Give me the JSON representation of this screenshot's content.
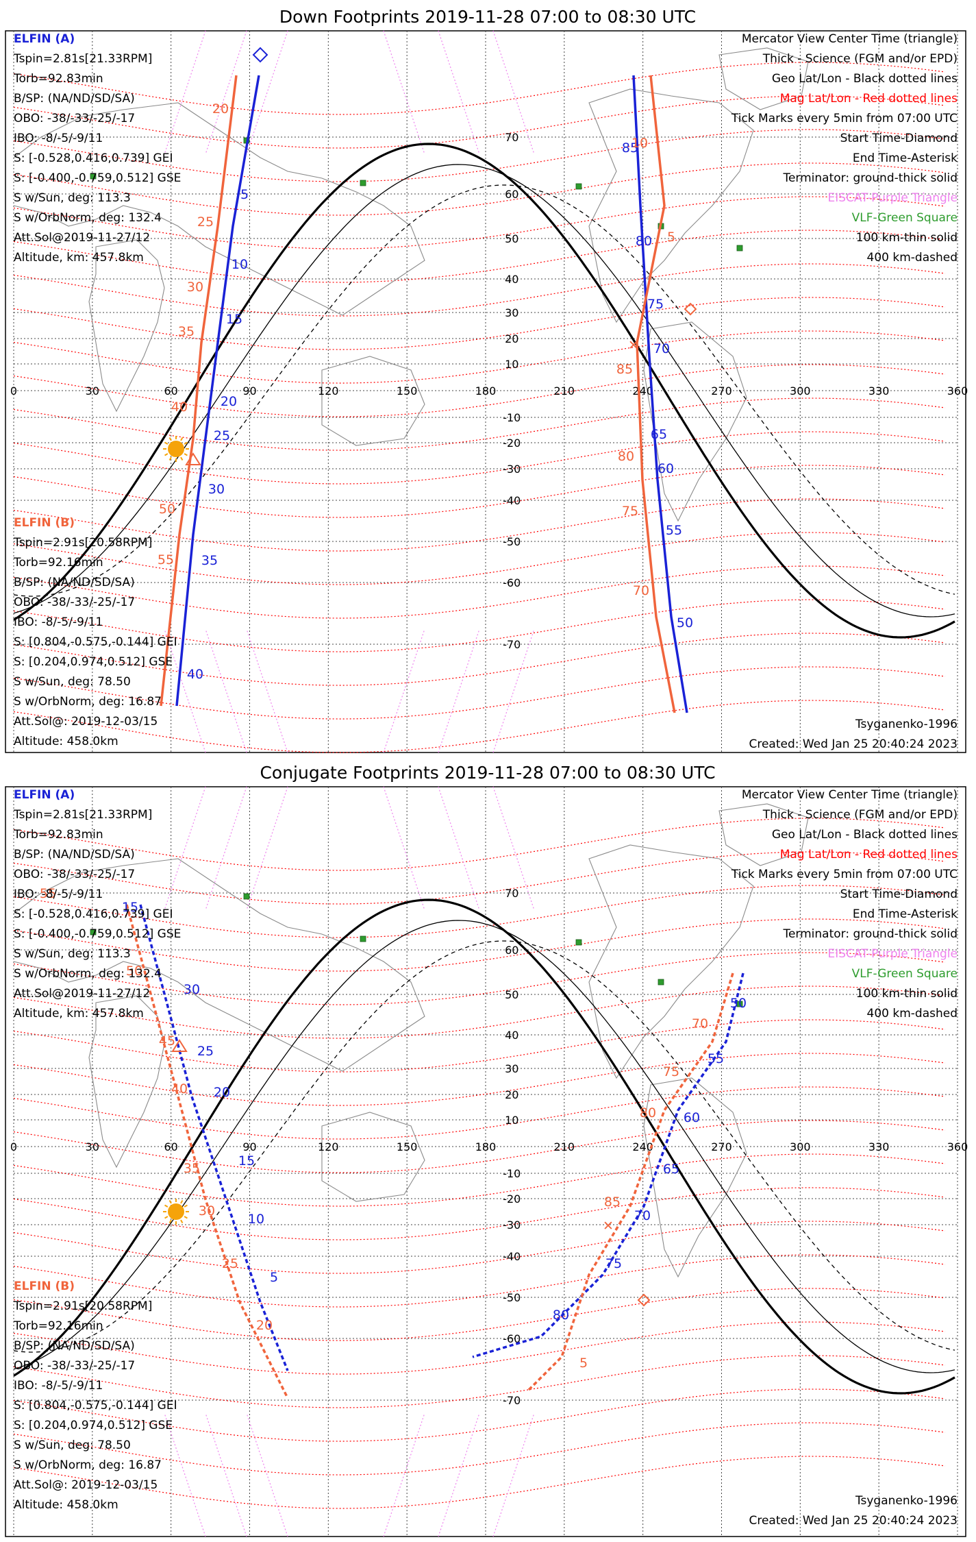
{
  "colors": {
    "elfin_a": "#1a22d6",
    "elfin_b": "#f0643c",
    "mag_grid": "#ff0000",
    "eiscat": "#ee82ee",
    "vlf": "#2e9c2e",
    "sun": "#f5a30a"
  },
  "panels": [
    {
      "title": "Down Footprints 2019-11-28 07:00 to 08:30 UTC",
      "elfin_a": {
        "name": "ELFIN (A)",
        "lines": [
          "Tspin=2.81s[21.33RPM]",
          "Torb=92.83min",
          "B/SP: (NA/ND/SD/SA)",
          "OBO: -38/-33/-25/-17",
          "IBO: -8/-5/-9/11",
          "S: [-0.528,0.416,0.739] GEI",
          "S: [-0.400,-0.759,0.512] GSE",
          "S w/Sun, deg: 113.3",
          "S w/OrbNorm, deg: 132.4",
          "Att.Sol@2019-11-27/12",
          "Altitude, km: 457.8km"
        ]
      },
      "elfin_b": {
        "name": "ELFIN (B)",
        "lines": [
          "Tspin=2.91s[20.58RPM]",
          "Torb=92.16min",
          "B/SP: (NA/ND/SD/SA)",
          "OBO: -38/-33/-25/-17",
          "IBO: -8/-5/-9/11",
          "S: [0.804,-0.575,-0.144] GEI",
          "S: [0.204,0.974,0.512] GSE",
          "S w/Sun, deg: 78.50",
          "S w/OrbNorm, deg: 16.87",
          "Att.Sol@: 2019-12-03/15",
          "Altitude: 458.0km"
        ]
      },
      "legend": [
        "Mercator View Center Time (triangle)",
        "Thick - Science (FGM and/or EPD)",
        "Geo Lat/Lon - Black dotted lines",
        "Mag Lat/Lon - Red dotted lines",
        "Tick Marks every 5min from 07:00 UTC",
        "Start Time-Diamond",
        "End Time-Asterisk",
        "Terminator: ground-thick solid",
        "EISCAT-Purple Triangle",
        "VLF-Green Square",
        "100 km-thin solid",
        "400 km-dashed"
      ],
      "footer_left": "",
      "footer_right_1": "Tsyganenko-1996",
      "footer_right_2": "Created: Wed Jan 25 20:40:24 2023",
      "track_a_labels": [
        "5",
        "10",
        "15",
        "20",
        "25",
        "30",
        "35",
        "40",
        "85",
        "80",
        "75",
        "70",
        "65",
        "60",
        "55",
        "50"
      ],
      "track_b_labels": [
        "20",
        "25",
        "30",
        "35",
        "40",
        "50",
        "55",
        "10",
        "5",
        "85",
        "80",
        "75",
        "70"
      ]
    },
    {
      "title": "Conjugate Footprints 2019-11-28 07:00 to 08:30 UTC",
      "elfin_a": {
        "name": "ELFIN (A)",
        "lines": [
          "Tspin=2.81s[21.33RPM]",
          "Torb=92.83min",
          "B/SP: (NA/ND/SD/SA)",
          "OBO: -38/-33/-25/-17",
          "IBO: -8/-5/-9/11",
          "S: [-0.528,0.416,0.739] GEI",
          "S: [-0.400,-0.759,0.512] GSE",
          "S w/Sun, deg: 113.3",
          "S w/OrbNorm, deg: 132.4",
          "Att.Sol@2019-11-27/12",
          "Altitude, km: 457.8km"
        ]
      },
      "elfin_b": {
        "name": "ELFIN (B)",
        "lines": [
          "Tspin=2.91s[20.58RPM]",
          "Torb=92.16min",
          "B/SP: (NA/ND/SD/SA)",
          "OBO: -38/-33/-25/-17",
          "IBO: -8/-5/-9/11",
          "S: [0.804,-0.575,-0.144] GEI",
          "S: [0.204,0.974,0.512] GSE",
          "S w/Sun, deg: 78.50",
          "S w/OrbNorm, deg: 16.87",
          "Att.Sol@: 2019-12-03/15",
          "Altitude: 458.0km"
        ]
      },
      "legend": [
        "Mercator View Center Time (triangle)",
        "Thick - Science (FGM and/or EPD)",
        "Geo Lat/Lon - Black dotted lines",
        "Mag Lat/Lon - Red dotted lines",
        "Tick Marks every 5min from 07:00 UTC",
        "Start Time-Diamond",
        "End Time-Asterisk",
        "Terminator: ground-thick solid",
        "EISCAT-Purple Triangle",
        "VLF-Green Square",
        "100 km-thin solid",
        "400 km-dashed"
      ],
      "footer_right_1": "Tsyganenko-1996",
      "footer_right_2": "Created: Wed Jan 25 20:40:24 2023",
      "track_a_labels": [
        "15",
        "30",
        "25",
        "20",
        "15",
        "10",
        "5",
        "80",
        "75",
        "70",
        "65",
        "60",
        "55",
        "50"
      ],
      "track_b_labels": [
        "55",
        "50",
        "45",
        "40",
        "35",
        "30",
        "25",
        "20",
        "5",
        "85",
        "80",
        "75",
        "70"
      ]
    }
  ],
  "lon_ticks": [
    "0",
    "30",
    "60",
    "90",
    "120",
    "150",
    "180",
    "210",
    "240",
    "270",
    "300",
    "330",
    "360"
  ],
  "lat_ticks": [
    "70",
    "60",
    "50",
    "40",
    "30",
    "20",
    "10",
    "-10",
    "-20",
    "-30",
    "-40",
    "-50",
    "-60",
    "-70"
  ]
}
